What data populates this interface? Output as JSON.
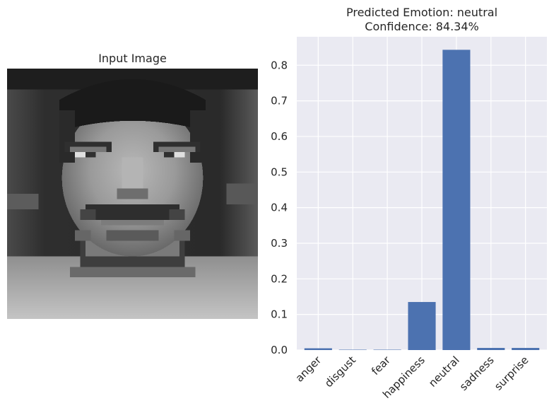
{
  "image_panel": {
    "title": "Input Image"
  },
  "chart_data": {
    "type": "bar",
    "title_line1": "Predicted Emotion: neutral",
    "title_line2": "Confidence: 84.34%",
    "categories": [
      "anger",
      "disgust",
      "fear",
      "happiness",
      "neutral",
      "sadness",
      "surprise"
    ],
    "values": [
      0.005,
      0.001,
      0.001,
      0.135,
      0.8434,
      0.006,
      0.006
    ],
    "ylim": [
      0,
      0.88
    ],
    "yticks": [
      "0.0",
      "0.1",
      "0.2",
      "0.3",
      "0.4",
      "0.5",
      "0.6",
      "0.7",
      "0.8"
    ],
    "grid": true,
    "bar_color": "#4c72b0",
    "background_color": "#eaeaf2",
    "grid_color": "#ffffff"
  }
}
